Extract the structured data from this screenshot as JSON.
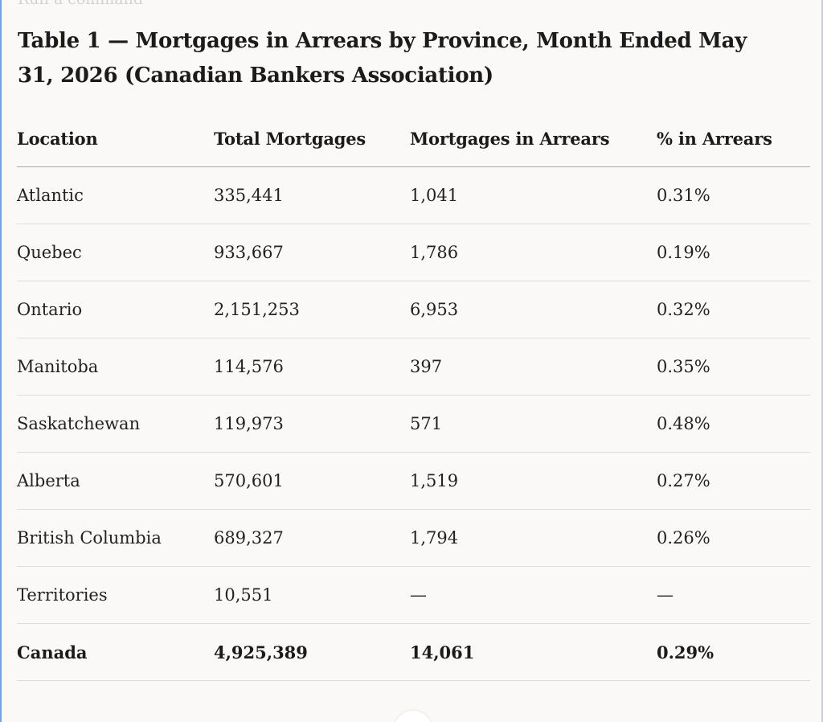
{
  "ghost_text": "Run a command",
  "title": "Table 1 — Mortgages in Arrears by Province, Month Ended May 31, 2026 (Canadian Bankers Association)",
  "table": {
    "headers": [
      "Location",
      "Total Mortgages",
      "Mortgages in Arrears",
      "% in Arrears"
    ],
    "rows": [
      [
        "Atlantic",
        "335,441",
        "1,041",
        "0.31%"
      ],
      [
        "Quebec",
        "933,667",
        "1,786",
        "0.19%"
      ],
      [
        "Ontario",
        "2,151,253",
        "6,953",
        "0.32%"
      ],
      [
        "Manitoba",
        "114,576",
        "397",
        "0.35%"
      ],
      [
        "Saskatchewan",
        "119,973",
        "571",
        "0.48%"
      ],
      [
        "Alberta",
        "570,601",
        "1,519",
        "0.27%"
      ],
      [
        "British Columbia",
        "689,327",
        "1,794",
        "0.26%"
      ],
      [
        "Territories",
        "10,551",
        "—",
        "—"
      ]
    ],
    "total": [
      "Canada",
      "4,925,389",
      "14,061",
      "0.29%"
    ]
  }
}
